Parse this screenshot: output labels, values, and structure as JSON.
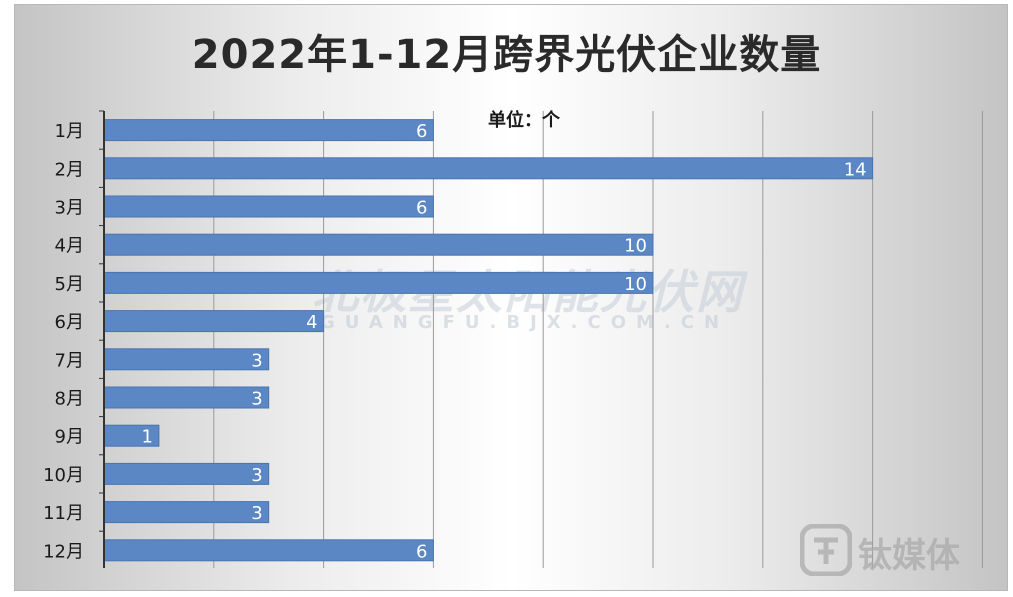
{
  "title": "2022年1-12月跨界光伏企业数量",
  "unit_label": "单位：个",
  "watermark": {
    "main": "北极星太阳能光伏网",
    "sub": "GUANGFU.BJX.COM.CN",
    "logo_text": "钛媒体"
  },
  "colors": {
    "bar": "#5b87c4",
    "bar_edge": "#4a74b0",
    "label": "#ffffff",
    "grid": "#9a9a9a"
  },
  "chart_data": {
    "type": "bar",
    "orientation": "horizontal",
    "title": "2022年1-12月跨界光伏企业数量",
    "unit": "单位：个",
    "categories": [
      "1月",
      "2月",
      "3月",
      "4月",
      "5月",
      "6月",
      "7月",
      "8月",
      "9月",
      "10月",
      "11月",
      "12月"
    ],
    "values": [
      6,
      14,
      6,
      10,
      10,
      4,
      3,
      3,
      1,
      3,
      3,
      6
    ],
    "xlim": [
      0,
      16
    ],
    "grid": true,
    "data_labels": true
  }
}
